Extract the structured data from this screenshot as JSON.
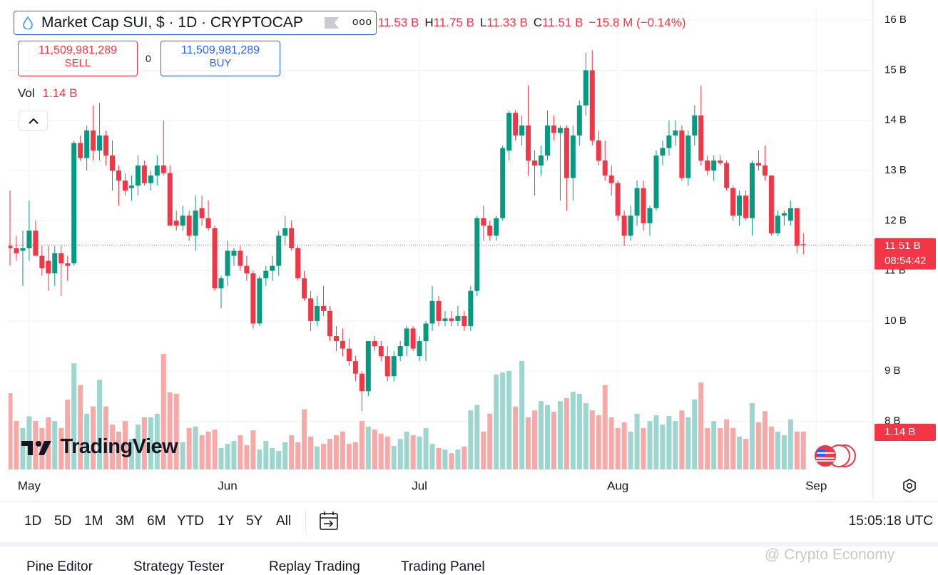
{
  "header": {
    "title": "Market Cap SUI, $ · 1D · CRYPTOCAP",
    "more": "ooo",
    "legend": [
      {
        "label": "11.53 B"
      },
      {
        "key": "H",
        "label": "11.75 B"
      },
      {
        "key": "L",
        "label": "11.33 B"
      },
      {
        "key": "C",
        "label": "11.51 B"
      },
      {
        "label": "−15.8 M (−0.14%)"
      }
    ]
  },
  "trade": {
    "sell_price": "11,509,981,289",
    "sell": "SELL",
    "spread": "0",
    "buy_price": "11,509,981,289",
    "buy": "BUY"
  },
  "volume_legend": {
    "key": "Vol",
    "label": "1.14 B"
  },
  "logo": "TradingView",
  "toolbar": {
    "ranges": [
      "1D",
      "5D",
      "1M",
      "3M",
      "6M",
      "YTD",
      "1Y",
      "5Y",
      "All"
    ],
    "clock": "15:05:18 UTC"
  },
  "tabs": [
    "Pine Editor",
    "Strategy Tester",
    "Replay Trading",
    "Trading Panel"
  ],
  "watermark": "@ Crypto Economy",
  "chart_data": {
    "type": "candlestick",
    "categories": [
      null,
      null,
      null,
      "May",
      null,
      null,
      null,
      null,
      null,
      null,
      null,
      null,
      null,
      null,
      null,
      null,
      null,
      null,
      null,
      null,
      null,
      null,
      null,
      null,
      null,
      null,
      null,
      null,
      null,
      null,
      null,
      null,
      null,
      null,
      "Jun",
      null,
      null,
      null,
      null,
      null,
      null,
      null,
      null,
      null,
      null,
      null,
      null,
      null,
      null,
      null,
      null,
      null,
      null,
      null,
      null,
      null,
      null,
      null,
      null,
      null,
      null,
      null,
      null,
      null,
      "Jul",
      null,
      null,
      null,
      null,
      null,
      null,
      null,
      null,
      null,
      null,
      null,
      null,
      null,
      null,
      null,
      null,
      null,
      null,
      null,
      null,
      null,
      null,
      null,
      null,
      null,
      null,
      null,
      null,
      null,
      null,
      "Aug",
      null,
      null,
      null,
      null,
      null,
      null,
      null,
      null,
      null,
      null,
      null,
      null,
      null,
      null,
      null,
      null,
      null,
      null,
      null,
      null,
      null,
      null,
      null,
      null,
      null,
      null,
      null,
      null,
      null,
      null,
      "Sep"
    ],
    "open": [
      11.5,
      11.45,
      11.4,
      11.45,
      11.8,
      11.3,
      11.2,
      10.95,
      11.35,
      11.15,
      11.15,
      13.55,
      13.25,
      13.8,
      13.4,
      13.7,
      13.3,
      13.0,
      12.8,
      12.65,
      12.7,
      13.1,
      12.75,
      12.9,
      13.1,
      12.95,
      12.0,
      11.9,
      12.1,
      11.7,
      12.25,
      12.05,
      11.85,
      10.65,
      10.9,
      11.3,
      11.4,
      11.1,
      10.95,
      9.95,
      10.85,
      11.0,
      11.1,
      11.7,
      11.85,
      11.45,
      10.85,
      10.45,
      10.0,
      10.3,
      10.2,
      9.7,
      9.6,
      9.45,
      9.2,
      8.95,
      8.6,
      9.6,
      9.5,
      9.3,
      8.9,
      9.3,
      9.5,
      9.85,
      9.3,
      9.6,
      9.95,
      10.4,
      10.0,
      10.05,
      10.0,
      10.1,
      9.9,
      10.6,
      12.05,
      11.9,
      11.7,
      12.05,
      13.4,
      14.15,
      13.7,
      13.9,
      13.2,
      13.1,
      13.3,
      13.9,
      13.75,
      13.85,
      12.85,
      13.7,
      14.3,
      15.0,
      13.6,
      13.2,
      12.9,
      12.75,
      12.1,
      11.7,
      12.1,
      12.65,
      11.95,
      12.25,
      13.3,
      13.45,
      13.7,
      13.8,
      12.85,
      13.7,
      14.1,
      13.2,
      13.0,
      13.2,
      13.15,
      12.65,
      12.1,
      12.5,
      12.05,
      13.15,
      13.1,
      12.9,
      11.75,
      12.1,
      12.0,
      12.25,
      11.53,
      null,
      null
    ],
    "high": [
      12.6,
      11.7,
      11.8,
      12.4,
      12.0,
      11.5,
      11.5,
      11.5,
      11.5,
      11.3,
      13.6,
      13.7,
      13.9,
      14.3,
      14.35,
      13.8,
      13.6,
      13.1,
      12.95,
      12.9,
      13.3,
      13.2,
      13.0,
      13.3,
      14.0,
      13.1,
      12.2,
      12.3,
      12.2,
      12.5,
      12.5,
      12.4,
      11.9,
      10.9,
      11.6,
      11.45,
      11.5,
      11.3,
      11.0,
      10.9,
      11.1,
      11.3,
      11.8,
      12.1,
      12.0,
      11.5,
      11.0,
      10.6,
      10.5,
      10.7,
      10.3,
      9.9,
      9.85,
      9.65,
      9.3,
      9.0,
      9.6,
      9.7,
      9.6,
      9.5,
      9.4,
      9.6,
      9.9,
      9.9,
      9.7,
      10.0,
      10.7,
      10.5,
      10.2,
      10.2,
      10.3,
      10.2,
      10.7,
      12.1,
      12.3,
      12.0,
      12.1,
      13.5,
      14.2,
      14.2,
      14.1,
      14.7,
      13.4,
      13.5,
      14.2,
      14.1,
      13.9,
      13.9,
      13.9,
      14.4,
      15.35,
      15.4,
      13.8,
      13.6,
      13.1,
      12.8,
      12.2,
      12.3,
      12.8,
      12.8,
      12.3,
      13.4,
      13.6,
      14.0,
      14.0,
      13.9,
      13.8,
      14.3,
      14.7,
      13.3,
      13.3,
      13.3,
      13.2,
      12.7,
      12.6,
      12.6,
      13.2,
      13.4,
      13.5,
      12.9,
      12.2,
      12.2,
      12.4,
      12.25,
      11.75,
      null,
      null
    ],
    "low": [
      11.1,
      11.2,
      10.7,
      11.2,
      11.3,
      10.9,
      10.6,
      10.7,
      10.5,
      10.8,
      11.1,
      13.2,
      13.0,
      13.2,
      13.2,
      13.1,
      12.6,
      12.3,
      12.5,
      12.4,
      12.5,
      12.7,
      12.6,
      12.7,
      12.9,
      11.9,
      11.8,
      11.8,
      11.6,
      11.4,
      11.9,
      11.8,
      10.6,
      10.25,
      10.7,
      11.1,
      11.0,
      10.8,
      9.85,
      9.9,
      10.7,
      10.8,
      10.9,
      11.5,
      11.4,
      10.8,
      10.4,
      9.8,
      9.9,
      10.1,
      9.6,
      9.4,
      9.3,
      9.1,
      8.8,
      8.2,
      8.5,
      9.4,
      9.2,
      8.8,
      8.8,
      9.2,
      9.3,
      9.4,
      9.2,
      9.2,
      9.8,
      9.9,
      9.9,
      9.9,
      9.9,
      9.8,
      9.8,
      10.5,
      11.6,
      11.6,
      11.6,
      12.0,
      13.2,
      13.6,
      13.5,
      12.9,
      12.5,
      12.9,
      13.2,
      13.6,
      12.4,
      12.2,
      12.4,
      13.5,
      14.1,
      13.5,
      13.1,
      12.8,
      12.5,
      12.0,
      11.5,
      11.6,
      11.9,
      11.8,
      11.7,
      12.2,
      13.1,
      13.3,
      13.5,
      12.8,
      12.7,
      13.5,
      13.1,
      12.9,
      12.8,
      13.1,
      12.6,
      12.0,
      11.9,
      12.0,
      11.7,
      13.0,
      12.8,
      11.7,
      11.7,
      11.9,
      11.9,
      11.35,
      11.33,
      null,
      null
    ],
    "close": [
      11.45,
      11.35,
      11.45,
      11.8,
      11.3,
      11.05,
      10.95,
      11.35,
      11.15,
      11.1,
      13.55,
      13.25,
      13.8,
      13.4,
      13.7,
      13.3,
      13.0,
      12.8,
      12.6,
      12.7,
      13.1,
      12.75,
      12.9,
      13.1,
      12.95,
      11.9,
      11.9,
      12.1,
      11.7,
      12.2,
      12.05,
      11.85,
      10.65,
      10.85,
      11.4,
      11.4,
      11.1,
      10.95,
      9.95,
      10.85,
      11.0,
      11.1,
      11.7,
      11.85,
      11.45,
      10.85,
      10.45,
      10.0,
      10.3,
      10.2,
      9.7,
      9.6,
      9.45,
      9.2,
      8.95,
      8.6,
      9.6,
      9.5,
      9.3,
      8.9,
      9.3,
      9.5,
      9.85,
      9.45,
      9.6,
      9.95,
      10.4,
      10.0,
      10.05,
      10.0,
      10.1,
      9.9,
      10.6,
      12.05,
      11.9,
      11.7,
      12.05,
      13.45,
      14.15,
      13.7,
      13.9,
      13.2,
      13.1,
      13.3,
      13.9,
      13.75,
      13.85,
      12.85,
      13.7,
      14.3,
      15.0,
      13.6,
      13.2,
      12.9,
      12.75,
      12.1,
      11.7,
      12.1,
      12.65,
      11.95,
      12.25,
      13.3,
      13.45,
      13.7,
      13.8,
      12.85,
      13.7,
      14.1,
      13.2,
      13.0,
      13.2,
      13.15,
      12.65,
      12.1,
      12.5,
      12.05,
      13.15,
      13.1,
      12.9,
      11.75,
      12.1,
      12.15,
      12.25,
      11.5,
      11.51,
      null,
      null
    ],
    "volume": [
      2.3,
      1.46,
      1.25,
      1.6,
      1.46,
      1.25,
      1.57,
      1.46,
      1.25,
      2.1,
      3.2,
      2.54,
      1.68,
      1.9,
      2.7,
      1.9,
      1.35,
      1.14,
      1.46,
      0.92,
      1.35,
      1.57,
      1.57,
      1.68,
      3.48,
      2.32,
      2.28,
      0.82,
      1.25,
      1.29,
      1.03,
      1.14,
      1.2,
      0.65,
      0.77,
      0.86,
      1.03,
      0.73,
      1.18,
      0.6,
      0.86,
      0.65,
      0.56,
      0.82,
      1.03,
      0.82,
      1.81,
      0.99,
      0.69,
      0.77,
      0.92,
      1.03,
      1.14,
      0.77,
      0.82,
      1.46,
      1.29,
      1.2,
      1.08,
      0.99,
      0.71,
      0.92,
      1.14,
      1.03,
      0.99,
      1.25,
      0.77,
      0.65,
      0.6,
      0.49,
      0.6,
      0.69,
      1.78,
      1.94,
      1.14,
      1.68,
      2.86,
      2.92,
      2.97,
      1.89,
      3.27,
      1.57,
      1.78,
      2.06,
      1.94,
      1.74,
      2.06,
      2.15,
      2.34,
      2.28,
      2.0,
      1.78,
      1.63,
      2.54,
      1.57,
      1.25,
      1.42,
      1.14,
      1.68,
      1.25,
      1.46,
      1.63,
      1.35,
      1.61,
      1.46,
      1.78,
      1.57,
      2.11,
      2.62,
      1.25,
      1.46,
      1.25,
      1.51,
      1.25,
      0.99,
      0.92,
      2.0,
      1.42,
      1.76,
      1.29,
      1.14,
      1.03,
      1.51,
      1.14,
      1.14,
      null,
      null
    ],
    "volume_label": "1.14 B",
    "ylim": [
      7.04,
      16.23
    ],
    "yticks": [
      {
        "value": 8,
        "label": "8 B"
      },
      {
        "value": 9,
        "label": "9 B"
      },
      {
        "value": 10,
        "label": "10 B"
      },
      {
        "value": 11,
        "label": "11 B"
      },
      {
        "value": 12,
        "label": "12 B"
      },
      {
        "value": 13,
        "label": "13 B"
      },
      {
        "value": 14,
        "label": "14 B"
      },
      {
        "value": 15,
        "label": "15 B"
      },
      {
        "value": 16,
        "label": "16 B"
      }
    ],
    "volume_ylim": [
      0,
      4
    ],
    "last_price": {
      "value": 11.51,
      "label": "11.51 B",
      "countdown": "08:54:42"
    },
    "up_color": "#089981",
    "down_color": "#f23645",
    "volume_up_color": "#9dd6cf",
    "volume_down_color": "#f7a9a8"
  }
}
